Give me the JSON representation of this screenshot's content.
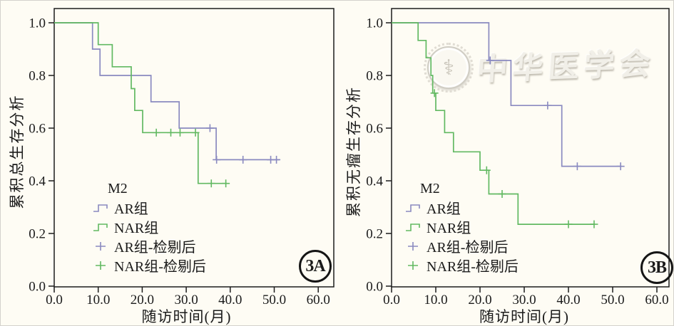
{
  "figure": {
    "watermark_text": "中华医学会",
    "watermark_emblem_glyph": "⚕"
  },
  "chart_data": [
    {
      "type": "line",
      "subtype": "kaplan_meier_step",
      "panel_label": "3A",
      "xlabel": "随访时间(月)",
      "ylabel": "累积总生存分析",
      "xlim": [
        0,
        60
      ],
      "ylim": [
        0.0,
        1.0
      ],
      "grid": false,
      "xticks": [
        0,
        10,
        20,
        30,
        40,
        50,
        60
      ],
      "xtick_labels": [
        "0.0",
        "10.0",
        "20.0",
        "30.0",
        "40.0",
        "50.0",
        "60.0"
      ],
      "yticks": [
        0.0,
        0.2,
        0.4,
        0.6,
        0.8,
        1.0
      ],
      "ytick_labels": [
        "0.0",
        "0.2",
        "0.4",
        "0.6",
        "0.8",
        "1.0"
      ],
      "legend": {
        "title": "M2",
        "position": "lower-left",
        "entries": [
          {
            "label": "AR组",
            "color": "#8a8ac0",
            "marker": "step-line"
          },
          {
            "label": "NAR组",
            "color": "#62b962",
            "marker": "step-line"
          },
          {
            "label": "AR组-检剔后",
            "color": "#8a8ac0",
            "marker": "plus"
          },
          {
            "label": "NAR组-检剔后",
            "color": "#62b962",
            "marker": "plus"
          }
        ]
      },
      "series": [
        {
          "name": "AR组",
          "color": "#8a8ac0",
          "step_points": [
            [
              0,
              1.0
            ],
            [
              8.7,
              1.0
            ],
            [
              8.7,
              0.9
            ],
            [
              10.4,
              0.9
            ],
            [
              10.4,
              0.8
            ],
            [
              22,
              0.8
            ],
            [
              22,
              0.7
            ],
            [
              28.4,
              0.7
            ],
            [
              28.4,
              0.6
            ],
            [
              36.8,
              0.6
            ],
            [
              36.8,
              0.48
            ],
            [
              51.2,
              0.48
            ]
          ],
          "censored": [
            [
              35.4,
              0.6
            ],
            [
              36.9,
              0.48
            ],
            [
              42.9,
              0.48
            ],
            [
              49.2,
              0.48
            ],
            [
              50.5,
              0.48
            ]
          ]
        },
        {
          "name": "NAR组",
          "color": "#62b962",
          "step_points": [
            [
              0,
              1.0
            ],
            [
              10,
              1.0
            ],
            [
              10,
              0.917
            ],
            [
              13.2,
              0.917
            ],
            [
              13.2,
              0.833
            ],
            [
              17.5,
              0.833
            ],
            [
              17.5,
              0.75
            ],
            [
              18.3,
              0.75
            ],
            [
              18.3,
              0.667
            ],
            [
              20.1,
              0.667
            ],
            [
              20.1,
              0.583
            ],
            [
              32.7,
              0.583
            ],
            [
              32.7,
              0.39
            ],
            [
              39.2,
              0.39
            ]
          ],
          "censored": [
            [
              23.2,
              0.583
            ],
            [
              26.5,
              0.583
            ],
            [
              28.6,
              0.583
            ],
            [
              32.1,
              0.583
            ],
            [
              35.7,
              0.39
            ],
            [
              39,
              0.39
            ]
          ]
        }
      ]
    },
    {
      "type": "line",
      "subtype": "kaplan_meier_step",
      "panel_label": "3B",
      "xlabel": "随访时间(月)",
      "ylabel": "累积无瘤生存分析",
      "xlim": [
        0,
        60
      ],
      "ylim": [
        0.0,
        1.0
      ],
      "grid": false,
      "xticks": [
        0,
        10,
        20,
        30,
        40,
        50,
        60
      ],
      "xtick_labels": [
        "0.0",
        "10.0",
        "20.0",
        "30.0",
        "40.0",
        "50.0",
        "60.0"
      ],
      "yticks": [
        0.0,
        0.2,
        0.4,
        0.6,
        0.8,
        1.0
      ],
      "ytick_labels": [
        "0.0",
        "0.2",
        "0.4",
        "0.6",
        "0.8",
        "1.0"
      ],
      "legend": {
        "title": "M2",
        "position": "lower-left",
        "entries": [
          {
            "label": "AR组",
            "color": "#8a8ac0",
            "marker": "step-line"
          },
          {
            "label": "NAR组",
            "color": "#62b962",
            "marker": "step-line"
          },
          {
            "label": "AR组-检剔后",
            "color": "#8a8ac0",
            "marker": "plus"
          },
          {
            "label": "NAR组-检剔后",
            "color": "#62b962",
            "marker": "plus"
          }
        ]
      },
      "series": [
        {
          "name": "AR组",
          "color": "#8a8ac0",
          "step_points": [
            [
              0,
              1.0
            ],
            [
              22,
              1.0
            ],
            [
              22,
              0.857
            ],
            [
              27,
              0.857
            ],
            [
              27,
              0.686
            ],
            [
              38.5,
              0.686
            ],
            [
              38.5,
              0.455
            ],
            [
              52,
              0.455
            ]
          ],
          "censored": [
            [
              22.3,
              0.857
            ],
            [
              35.3,
              0.686
            ],
            [
              42,
              0.455
            ],
            [
              51.8,
              0.455
            ]
          ]
        },
        {
          "name": "NAR组",
          "color": "#62b962",
          "step_points": [
            [
              0,
              1.0
            ],
            [
              6,
              1.0
            ],
            [
              6,
              0.933
            ],
            [
              7.8,
              0.933
            ],
            [
              7.8,
              0.867
            ],
            [
              8.9,
              0.867
            ],
            [
              8.9,
              0.8
            ],
            [
              9.3,
              0.8
            ],
            [
              9.3,
              0.733
            ],
            [
              10,
              0.733
            ],
            [
              10,
              0.667
            ],
            [
              12,
              0.667
            ],
            [
              12,
              0.583
            ],
            [
              14,
              0.583
            ],
            [
              14,
              0.51
            ],
            [
              20,
              0.51
            ],
            [
              20,
              0.44
            ],
            [
              22,
              0.44
            ],
            [
              22,
              0.35
            ],
            [
              28.6,
              0.35
            ],
            [
              28.6,
              0.235
            ],
            [
              46,
              0.235
            ]
          ],
          "censored": [
            [
              9.7,
              0.733
            ],
            [
              21.5,
              0.44
            ],
            [
              25,
              0.35
            ],
            [
              40,
              0.235
            ],
            [
              45.8,
              0.235
            ]
          ]
        }
      ]
    }
  ]
}
